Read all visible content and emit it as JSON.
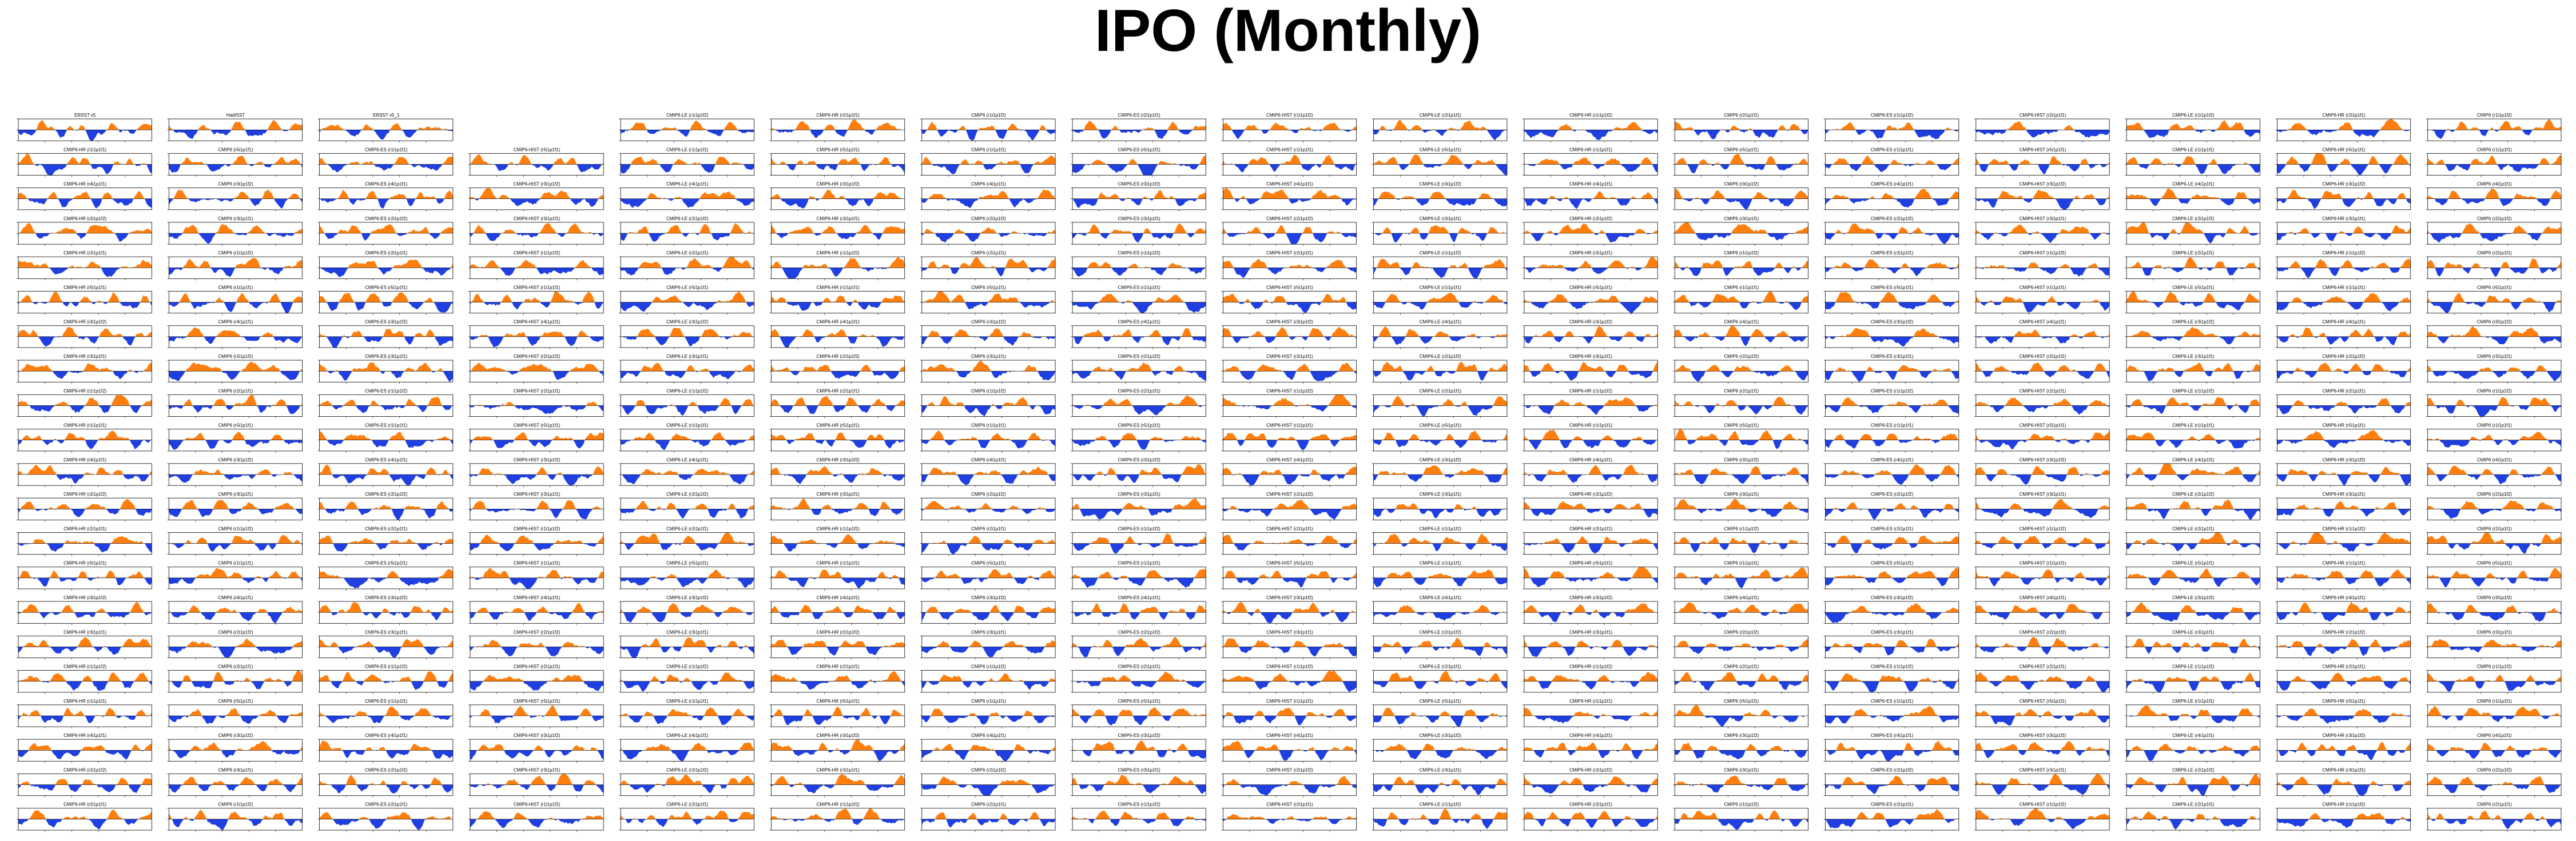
{
  "title": "IPO (Monthly)",
  "colors": {
    "positive": "#ff7f0e",
    "negative": "#1f3fe0",
    "axis": "#000000",
    "background": "#ffffff"
  },
  "chart_data": {
    "type": "area",
    "title": "IPO (Monthly)",
    "layout_description": "Small-multiples grid of filled anomaly time series (orange above zero, blue below zero)",
    "grid": {
      "columns": 17,
      "rows": 21
    },
    "blank_panels": [
      [
        0,
        3
      ]
    ],
    "observation_titles": [
      "ERSST v5",
      "HadISST",
      "ERSST v5_1"
    ],
    "model_title_template": "{prefix} ({variant})",
    "model_prefixes": [
      "CMIP6",
      "CMIP6-LE",
      "CMIP6-ES",
      "CMIP6-HR",
      "CMIP6-HIST"
    ],
    "model_variants": [
      "r1i1p1f1",
      "r2i1p1f1",
      "r3i1p1f1",
      "r4i1p1f1",
      "r5i1p1f1",
      "r1i1p1f2",
      "r2i1p1f2",
      "r3i1p1f2"
    ],
    "xlim": [
      1900,
      2020
    ],
    "ylim": [
      -1.5,
      1.5
    ],
    "series_pattern_note": "Each panel shows a smoothed monthly index with alternating positive (orange) and negative (blue) phases"
  }
}
